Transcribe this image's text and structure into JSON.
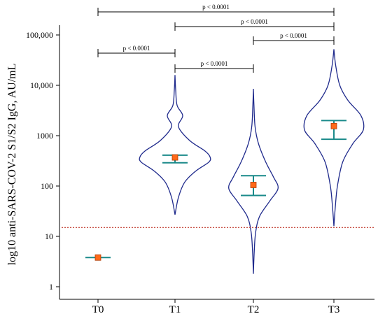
{
  "chart_data": {
    "type": "violin",
    "ylabel": "log10 anti-SARS-COV-2 S1/S2 IgG, AU/mL",
    "yscale": "log",
    "ylim": [
      0.7,
      150000
    ],
    "yticks": [
      {
        "value": 1,
        "label": "1"
      },
      {
        "value": 10,
        "label": "10"
      },
      {
        "value": 100,
        "label": "100"
      },
      {
        "value": 1000,
        "label": "1000"
      },
      {
        "value": 10000,
        "label": "10,000"
      },
      {
        "value": 100000,
        "label": "100,000"
      }
    ],
    "categories": [
      "T0",
      "T1",
      "T2",
      "T3"
    ],
    "groups": [
      {
        "category": "T0",
        "median": 3.8,
        "ci_low": 3.8,
        "ci_high": 3.8,
        "min": 3.8,
        "max": 3.8,
        "density": []
      },
      {
        "category": "T1",
        "median": 370,
        "ci_low": 290,
        "ci_high": 410,
        "min": 27,
        "max": 16000,
        "density": [
          [
            27,
            0
          ],
          [
            60,
            0.1
          ],
          [
            120,
            0.28
          ],
          [
            200,
            0.6
          ],
          [
            300,
            0.97
          ],
          [
            380,
            1.0
          ],
          [
            500,
            0.85
          ],
          [
            800,
            0.42
          ],
          [
            1500,
            0.1
          ],
          [
            2500,
            0.22
          ],
          [
            4000,
            0.06
          ],
          [
            8000,
            0.02
          ],
          [
            16000,
            0
          ]
        ]
      },
      {
        "category": "T2",
        "median": 105,
        "ci_low": 65,
        "ci_high": 160,
        "min": 1.8,
        "max": 8500,
        "density": [
          [
            1.8,
            0
          ],
          [
            5,
            0.03
          ],
          [
            12,
            0.08
          ],
          [
            25,
            0.22
          ],
          [
            50,
            0.58
          ],
          [
            90,
            0.88
          ],
          [
            150,
            0.72
          ],
          [
            300,
            0.44
          ],
          [
            700,
            0.18
          ],
          [
            1500,
            0.06
          ],
          [
            4000,
            0.02
          ],
          [
            8500,
            0
          ]
        ]
      },
      {
        "category": "T3",
        "median": 1550,
        "ci_low": 850,
        "ci_high": 2000,
        "min": 16,
        "max": 52000,
        "density": [
          [
            16,
            0
          ],
          [
            40,
            0.05
          ],
          [
            100,
            0.12
          ],
          [
            300,
            0.3
          ],
          [
            700,
            0.65
          ],
          [
            1300,
            1.0
          ],
          [
            2500,
            0.92
          ],
          [
            5000,
            0.48
          ],
          [
            10000,
            0.2
          ],
          [
            25000,
            0.06
          ],
          [
            52000,
            0
          ]
        ]
      }
    ],
    "threshold": {
      "value": 15
    },
    "comparisons": [
      {
        "from": "T0",
        "to": "T3",
        "label": "p < 0.0001"
      },
      {
        "from": "T1",
        "to": "T3",
        "label": "p < 0.0001"
      },
      {
        "from": "T2",
        "to": "T3",
        "label": "p < 0.0001"
      },
      {
        "from": "T0",
        "to": "T1",
        "label": "p < 0.0001"
      },
      {
        "from": "T1",
        "to": "T2",
        "label": "p < 0.0001"
      }
    ],
    "colors": {
      "violin": "#1f2a8c",
      "errorbar": "#1a8a8a",
      "marker": "#ff6a1a",
      "marker_edge": "#b23a00",
      "threshold": "#c0392b",
      "axis": "#000000"
    }
  }
}
